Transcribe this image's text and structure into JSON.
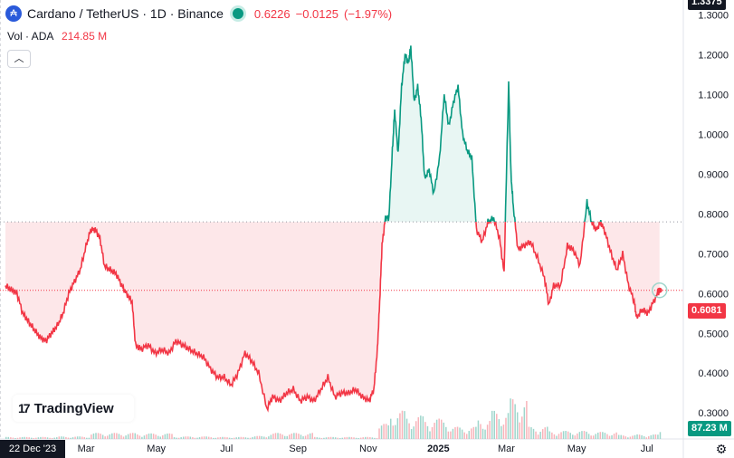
{
  "legend": {
    "symbol_title": "Cardano / TetherUS · 1D · Binance",
    "last_price": "0.6226",
    "change": "−0.0125",
    "change_pct": "(−1.97%)",
    "coin_icon": "cardano-coin-icon",
    "status_icon": "market-open-dot-icon"
  },
  "volume": {
    "label": "Vol · ADA",
    "value": "214.85 M"
  },
  "collapse_icon": "chevron-up-icon",
  "logo": {
    "mark": "17",
    "text": "TradingView"
  },
  "price_badge": {
    "value": "0.6081",
    "color": "#f23645"
  },
  "volume_badge": {
    "value": "87.23 M",
    "color": "#089981"
  },
  "top_badge": {
    "value": "1.3375"
  },
  "crosshair_date": "22 Dec '23",
  "settings_icon": "gear-icon",
  "colors": {
    "up_line": "#089981",
    "down_line": "#f23645",
    "up_fill": "#e8f6f3",
    "down_fill": "#fde7e9",
    "baseline": "#9598a1",
    "volume_up": "#9fd6cc",
    "volume_down": "#f8b4ba"
  },
  "chart_data": {
    "type": "line",
    "style": "baseline",
    "baseline_value": 0.78,
    "current_value": 0.6081,
    "ylim": [
      0.23,
      1.3375
    ],
    "y_ticks": [
      "1.3000",
      "1.2000",
      "1.1000",
      "1.0000",
      "0.9000",
      "0.8000",
      "0.7000",
      "0.6000",
      "0.5000",
      "0.4000",
      "0.3000"
    ],
    "x_tick_labels": [
      "Mar",
      "May",
      "Jul",
      "Sep",
      "Nov",
      "2025",
      "Mar",
      "May",
      "Jul"
    ],
    "x_tick_dates": [
      "2024-03-01",
      "2024-05-01",
      "2024-07-01",
      "2024-09-01",
      "2024-11-01",
      "2025-01-01",
      "2025-03-01",
      "2025-05-01",
      "2025-07-01"
    ],
    "x_range": [
      "2023-12-22",
      "2025-07-13"
    ],
    "series": [
      {
        "values": [
          [
            "2023-12-22",
            0.62
          ],
          [
            "2023-12-27",
            0.61
          ],
          [
            "2024-01-01",
            0.6
          ],
          [
            "2024-01-06",
            0.55
          ],
          [
            "2024-01-11",
            0.53
          ],
          [
            "2024-01-16",
            0.51
          ],
          [
            "2024-01-21",
            0.49
          ],
          [
            "2024-01-26",
            0.48
          ],
          [
            "2024-01-31",
            0.5
          ],
          [
            "2024-02-05",
            0.52
          ],
          [
            "2024-02-10",
            0.55
          ],
          [
            "2024-02-15",
            0.6
          ],
          [
            "2024-02-20",
            0.63
          ],
          [
            "2024-02-25",
            0.66
          ],
          [
            "2024-03-01",
            0.72
          ],
          [
            "2024-03-05",
            0.76
          ],
          [
            "2024-03-09",
            0.76
          ],
          [
            "2024-03-13",
            0.74
          ],
          [
            "2024-03-17",
            0.67
          ],
          [
            "2024-03-22",
            0.66
          ],
          [
            "2024-03-27",
            0.65
          ],
          [
            "2024-04-01",
            0.62
          ],
          [
            "2024-04-05",
            0.6
          ],
          [
            "2024-04-10",
            0.58
          ],
          [
            "2024-04-13",
            0.47
          ],
          [
            "2024-04-18",
            0.46
          ],
          [
            "2024-04-24",
            0.47
          ],
          [
            "2024-04-30",
            0.45
          ],
          [
            "2024-05-06",
            0.46
          ],
          [
            "2024-05-12",
            0.45
          ],
          [
            "2024-05-18",
            0.48
          ],
          [
            "2024-05-24",
            0.47
          ],
          [
            "2024-05-30",
            0.46
          ],
          [
            "2024-06-05",
            0.45
          ],
          [
            "2024-06-11",
            0.44
          ],
          [
            "2024-06-17",
            0.41
          ],
          [
            "2024-06-23",
            0.39
          ],
          [
            "2024-06-29",
            0.39
          ],
          [
            "2024-07-05",
            0.37
          ],
          [
            "2024-07-11",
            0.4
          ],
          [
            "2024-07-17",
            0.45
          ],
          [
            "2024-07-23",
            0.43
          ],
          [
            "2024-07-29",
            0.4
          ],
          [
            "2024-08-05",
            0.31
          ],
          [
            "2024-08-10",
            0.34
          ],
          [
            "2024-08-16",
            0.33
          ],
          [
            "2024-08-22",
            0.35
          ],
          [
            "2024-08-28",
            0.36
          ],
          [
            "2024-09-03",
            0.33
          ],
          [
            "2024-09-09",
            0.34
          ],
          [
            "2024-09-15",
            0.33
          ],
          [
            "2024-09-21",
            0.36
          ],
          [
            "2024-09-27",
            0.39
          ],
          [
            "2024-10-03",
            0.34
          ],
          [
            "2024-10-09",
            0.35
          ],
          [
            "2024-10-15",
            0.35
          ],
          [
            "2024-10-21",
            0.36
          ],
          [
            "2024-10-27",
            0.34
          ],
          [
            "2024-11-02",
            0.33
          ],
          [
            "2024-11-06",
            0.36
          ],
          [
            "2024-11-09",
            0.46
          ],
          [
            "2024-11-11",
            0.58
          ],
          [
            "2024-11-13",
            0.72
          ],
          [
            "2024-11-16",
            0.79
          ],
          [
            "2024-11-19",
            0.79
          ],
          [
            "2024-11-22",
            0.96
          ],
          [
            "2024-11-24",
            1.06
          ],
          [
            "2024-11-27",
            0.95
          ],
          [
            "2024-11-30",
            1.12
          ],
          [
            "2024-12-03",
            1.2
          ],
          [
            "2024-12-06",
            1.18
          ],
          [
            "2024-12-08",
            1.22
          ],
          [
            "2024-12-11",
            1.08
          ],
          [
            "2024-12-14",
            1.12
          ],
          [
            "2024-12-17",
            1.04
          ],
          [
            "2024-12-20",
            0.89
          ],
          [
            "2024-12-24",
            0.91
          ],
          [
            "2024-12-28",
            0.85
          ],
          [
            "2025-01-02",
            0.94
          ],
          [
            "2025-01-06",
            1.1
          ],
          [
            "2025-01-10",
            1.02
          ],
          [
            "2025-01-14",
            1.08
          ],
          [
            "2025-01-18",
            1.12
          ],
          [
            "2025-01-22",
            1.0
          ],
          [
            "2025-01-26",
            0.96
          ],
          [
            "2025-01-30",
            0.94
          ],
          [
            "2025-02-03",
            0.76
          ],
          [
            "2025-02-08",
            0.73
          ],
          [
            "2025-02-13",
            0.78
          ],
          [
            "2025-02-18",
            0.79
          ],
          [
            "2025-02-23",
            0.74
          ],
          [
            "2025-02-27",
            0.65
          ],
          [
            "2025-03-03",
            1.13
          ],
          [
            "2025-03-05",
            0.9
          ],
          [
            "2025-03-07",
            0.82
          ],
          [
            "2025-03-11",
            0.71
          ],
          [
            "2025-03-16",
            0.72
          ],
          [
            "2025-03-22",
            0.73
          ],
          [
            "2025-03-28",
            0.69
          ],
          [
            "2025-04-03",
            0.64
          ],
          [
            "2025-04-07",
            0.57
          ],
          [
            "2025-04-11",
            0.62
          ],
          [
            "2025-04-17",
            0.62
          ],
          [
            "2025-04-23",
            0.72
          ],
          [
            "2025-04-28",
            0.71
          ],
          [
            "2025-05-04",
            0.67
          ],
          [
            "2025-05-10",
            0.83
          ],
          [
            "2025-05-14",
            0.78
          ],
          [
            "2025-05-18",
            0.76
          ],
          [
            "2025-05-22",
            0.78
          ],
          [
            "2025-05-26",
            0.75
          ],
          [
            "2025-05-31",
            0.7
          ],
          [
            "2025-06-05",
            0.66
          ],
          [
            "2025-06-10",
            0.7
          ],
          [
            "2025-06-15",
            0.62
          ],
          [
            "2025-06-20",
            0.58
          ],
          [
            "2025-06-22",
            0.54
          ],
          [
            "2025-06-27",
            0.56
          ],
          [
            "2025-07-02",
            0.55
          ],
          [
            "2025-07-07",
            0.58
          ],
          [
            "2025-07-12",
            0.6081
          ]
        ]
      }
    ],
    "volume_series": {
      "ylim": [
        0,
        1200
      ],
      "values": [
        [
          "2024-01-10",
          20
        ],
        [
          "2024-02-05",
          25
        ],
        [
          "2024-03-05",
          60
        ],
        [
          "2024-04-13",
          55
        ],
        [
          "2024-05-15",
          25
        ],
        [
          "2024-06-20",
          20
        ],
        [
          "2024-07-20",
          30
        ],
        [
          "2024-08-05",
          60
        ],
        [
          "2024-09-15",
          20
        ],
        [
          "2024-10-20",
          20
        ],
        [
          "2024-11-10",
          150
        ],
        [
          "2024-11-20",
          280
        ],
        [
          "2024-12-03",
          230
        ],
        [
          "2024-12-20",
          200
        ],
        [
          "2025-01-10",
          120
        ],
        [
          "2025-02-03",
          200
        ],
        [
          "2025-02-15",
          280
        ],
        [
          "2025-03-03",
          400
        ],
        [
          "2025-03-20",
          120
        ],
        [
          "2025-04-07",
          80
        ],
        [
          "2025-05-10",
          70
        ],
        [
          "2025-06-05",
          40
        ],
        [
          "2025-06-22",
          45
        ],
        [
          "2025-07-12",
          87.23
        ]
      ]
    }
  }
}
